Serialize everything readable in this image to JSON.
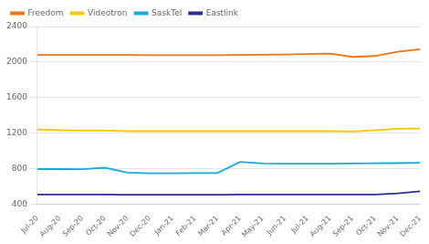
{
  "chart_data": {
    "type": "line",
    "categories": [
      "Jul-20",
      "Aug-20",
      "Sep-20",
      "Oct-20",
      "Nov-20",
      "Dec-20",
      "Jan-21",
      "Feb-21",
      "Mar-21",
      "Apr-21",
      "May-21",
      "Jun-21",
      "Jul-21",
      "Aug-21",
      "Sep-21",
      "Oct-21",
      "Nov-21",
      "Dec-21"
    ],
    "series": [
      {
        "name": "Freedom",
        "color": "#E8761A",
        "values": [
          2080,
          2080,
          2080,
          2080,
          2080,
          2078,
          2078,
          2078,
          2078,
          2080,
          2082,
          2085,
          2090,
          2095,
          2058,
          2068,
          2115,
          2145
        ]
      },
      {
        "name": "Videotron",
        "color": "#F5C800",
        "values": [
          1240,
          1232,
          1228,
          1228,
          1222,
          1222,
          1222,
          1222,
          1222,
          1222,
          1222,
          1222,
          1222,
          1222,
          1218,
          1232,
          1248,
          1252
        ]
      },
      {
        "name": "SaskTel",
        "color": "#1BAAD4",
        "values": [
          795,
          795,
          793,
          810,
          755,
          748,
          748,
          750,
          750,
          875,
          858,
          855,
          855,
          855,
          857,
          860,
          862,
          865
        ]
      },
      {
        "name": "Eastlink",
        "color": "#2D2D8F",
        "values": [
          508,
          508,
          508,
          508,
          506,
          506,
          506,
          506,
          506,
          508,
          508,
          508,
          508,
          508,
          508,
          508,
          520,
          545
        ]
      }
    ],
    "ylim": [
      400,
      2400
    ],
    "yticks": [
      400,
      800,
      1200,
      1600,
      2000,
      2400
    ],
    "grid": true,
    "legend": "upper left"
  }
}
